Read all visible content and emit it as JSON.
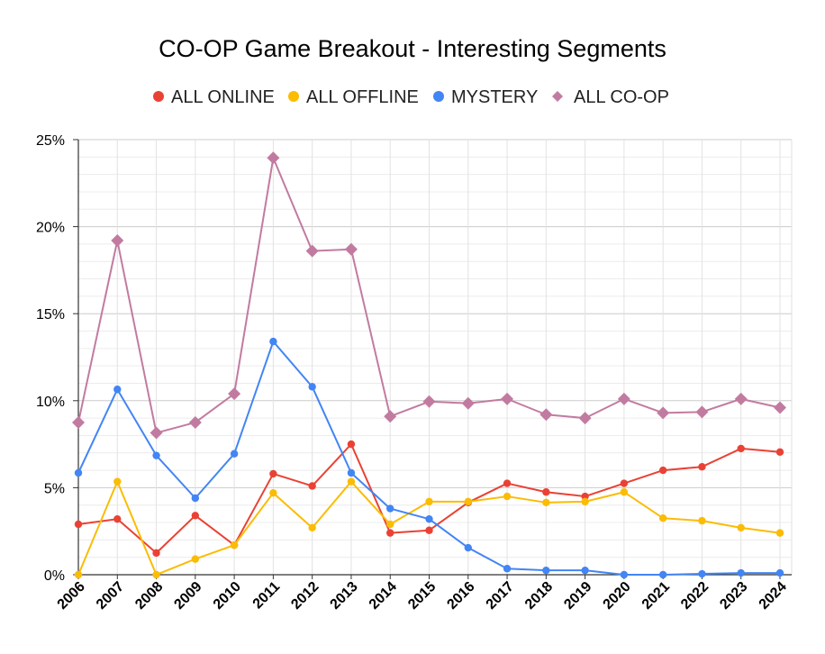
{
  "chart_data": {
    "type": "line",
    "title": "CO-OP Game Breakout - Interesting Segments",
    "xlabel": "",
    "ylabel": "",
    "x": [
      "2006",
      "2007",
      "2008",
      "2009",
      "2010",
      "2011",
      "2012",
      "2013",
      "2014",
      "2015",
      "2016",
      "2017",
      "2018",
      "2019",
      "2020",
      "2021",
      "2022",
      "2023",
      "2024"
    ],
    "ylim": [
      0,
      25
    ],
    "yticks": [
      {
        "value": 0,
        "label": "0%"
      },
      {
        "value": 5,
        "label": "5%"
      },
      {
        "value": 10,
        "label": "10%"
      },
      {
        "value": 15,
        "label": "15%"
      },
      {
        "value": 20,
        "label": "20%"
      },
      {
        "value": 25,
        "label": "25%"
      }
    ],
    "grid": true,
    "legend_position": "top",
    "series": [
      {
        "name": "ALL ONLINE",
        "color": "#e94235",
        "marker": "circle",
        "values": [
          2.9,
          3.2,
          1.25,
          3.4,
          1.7,
          5.8,
          5.1,
          7.5,
          2.4,
          2.55,
          4.15,
          5.25,
          4.75,
          4.5,
          5.25,
          6.0,
          6.2,
          7.25,
          7.05
        ]
      },
      {
        "name": "ALL OFFLINE",
        "color": "#fbbc04",
        "marker": "circle",
        "values": [
          0.0,
          5.35,
          0.0,
          0.9,
          1.7,
          4.7,
          2.7,
          5.35,
          2.9,
          4.2,
          4.2,
          4.5,
          4.15,
          4.2,
          4.75,
          3.25,
          3.1,
          2.7,
          2.4
        ]
      },
      {
        "name": "MYSTERY",
        "color": "#4285f4",
        "marker": "circle",
        "values": [
          5.85,
          10.65,
          6.85,
          4.4,
          6.95,
          13.4,
          10.8,
          5.85,
          3.8,
          3.2,
          1.55,
          0.35,
          0.25,
          0.25,
          0.0,
          0.0,
          0.05,
          0.1,
          0.1
        ]
      },
      {
        "name": "ALL CO-OP",
        "color": "#c27ba0",
        "marker": "diamond",
        "values": [
          8.75,
          19.2,
          8.15,
          8.75,
          10.4,
          23.95,
          18.6,
          18.7,
          9.1,
          9.95,
          9.85,
          10.1,
          9.2,
          9.0,
          10.1,
          9.3,
          9.35,
          10.1,
          9.6
        ]
      }
    ]
  }
}
